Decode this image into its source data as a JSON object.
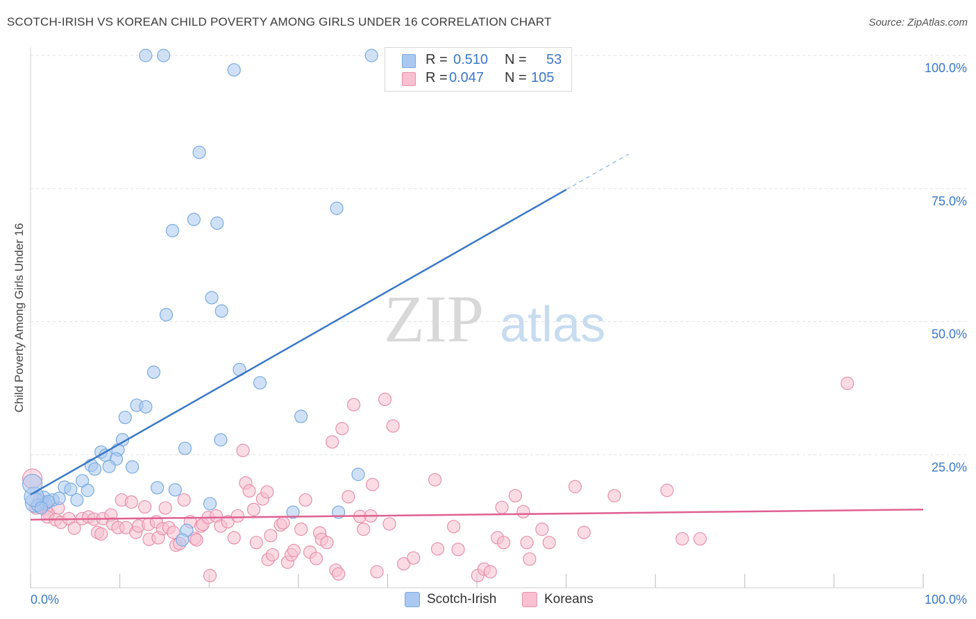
{
  "header": {
    "title": "SCOTCH-IRISH VS KOREAN CHILD POVERTY AMONG GIRLS UNDER 16 CORRELATION CHART",
    "source": "Source: ZipAtlas.com"
  },
  "watermark": {
    "part1": "ZIP",
    "part2": "atlas"
  },
  "stats": {
    "r_label": "R =",
    "n_label": "N =",
    "rows": [
      {
        "r": "0.510",
        "n": "53",
        "color": "#aac8f0",
        "border": "#7aaae0"
      },
      {
        "r": "0.047",
        "n": "105",
        "color": "#f8c0d0",
        "border": "#e890ac"
      }
    ]
  },
  "legend": {
    "items": [
      {
        "label": "Scotch-Irish",
        "color": "#aac8f0",
        "border": "#7aaae0"
      },
      {
        "label": "Koreans",
        "color": "#f8c0d0",
        "border": "#e890ac"
      }
    ]
  },
  "chart_data": {
    "type": "scatter",
    "title": "SCOTCH-IRISH VS KOREAN CHILD POVERTY AMONG GIRLS UNDER 16 CORRELATION CHART",
    "xlabel": "",
    "ylabel": "Child Poverty Among Girls Under 16",
    "xlim": [
      0,
      100
    ],
    "ylim": [
      0,
      100
    ],
    "x_tick_labels": [
      "0.0%",
      "100.0%"
    ],
    "y_ticks": [
      25,
      50,
      75,
      100
    ],
    "y_tick_labels": [
      "25.0%",
      "50.0%",
      "75.0%",
      "100.0%"
    ],
    "grid": true,
    "legend_position": "bottom",
    "series": [
      {
        "name": "Scotch-Irish",
        "color": "#7aaae0",
        "fill": "#aac8f0",
        "line_color": "#3a78c8",
        "trend": {
          "x0": 0,
          "y0": 17.5,
          "x1": 100,
          "y1": 113,
          "solid_until": 60
        },
        "points": [
          [
            12.9,
            100
          ],
          [
            14.9,
            100
          ],
          [
            38.2,
            100
          ],
          [
            22.8,
            97.3
          ],
          [
            18.9,
            81.8
          ],
          [
            34.3,
            71.3
          ],
          [
            15.9,
            67.1
          ],
          [
            18.3,
            69.2
          ],
          [
            20.9,
            68.5
          ],
          [
            20.3,
            54.5
          ],
          [
            21.4,
            52.0
          ],
          [
            15.2,
            51.3
          ],
          [
            13.8,
            40.5
          ],
          [
            23.4,
            41.0
          ],
          [
            25.7,
            38.5
          ],
          [
            11.9,
            34.3
          ],
          [
            12.9,
            34.0
          ],
          [
            10.6,
            32.0
          ],
          [
            30.3,
            32.2
          ],
          [
            10.3,
            27.8
          ],
          [
            21.3,
            27.8
          ],
          [
            9.8,
            25.9
          ],
          [
            17.3,
            26.2
          ],
          [
            7.9,
            25.5
          ],
          [
            8.4,
            24.9
          ],
          [
            11.4,
            22.7
          ],
          [
            9.6,
            24.2
          ],
          [
            8.8,
            22.8
          ],
          [
            6.8,
            23.0
          ],
          [
            7.2,
            22.3
          ],
          [
            5.8,
            20.1
          ],
          [
            36.7,
            21.3
          ],
          [
            3.8,
            18.9
          ],
          [
            4.5,
            18.5
          ],
          [
            6.4,
            18.3
          ],
          [
            14.2,
            18.8
          ],
          [
            16.2,
            18.4
          ],
          [
            1.5,
            17.0
          ],
          [
            2.5,
            16.5
          ],
          [
            3.2,
            16.8
          ],
          [
            5.2,
            16.5
          ],
          [
            0.5,
            16.0
          ],
          [
            1.7,
            15.8
          ],
          [
            2.0,
            16.2
          ],
          [
            0.8,
            15.5
          ],
          [
            0.4,
            17.1
          ],
          [
            0.2,
            19.5
          ],
          [
            20.1,
            15.8
          ],
          [
            29.4,
            14.2
          ],
          [
            34.5,
            14.2
          ],
          [
            17.5,
            10.8
          ],
          [
            17.0,
            9.0
          ],
          [
            1.2,
            15.0
          ]
        ]
      },
      {
        "name": "Koreans",
        "color": "#e890ac",
        "fill": "#f8c0d0",
        "line_color": "#e06090",
        "trend": {
          "x0": 0,
          "y0": 12.8,
          "x1": 100,
          "y1": 14.7
        },
        "points": [
          [
            0.2,
            20.5
          ],
          [
            1.0,
            16.6
          ],
          [
            0.6,
            15.0
          ],
          [
            1.3,
            15.9
          ],
          [
            1.7,
            14.8
          ],
          [
            2.0,
            14.0
          ],
          [
            1.9,
            13.3
          ],
          [
            3.1,
            15.0
          ],
          [
            2.8,
            12.8
          ],
          [
            3.4,
            12.3
          ],
          [
            4.3,
            13.0
          ],
          [
            4.9,
            11.2
          ],
          [
            5.8,
            13.0
          ],
          [
            6.5,
            13.3
          ],
          [
            7.1,
            12.9
          ],
          [
            7.5,
            10.4
          ],
          [
            7.9,
            10.1
          ],
          [
            8.1,
            13.0
          ],
          [
            9.0,
            13.7
          ],
          [
            9.2,
            12.0
          ],
          [
            9.8,
            11.3
          ],
          [
            10.2,
            16.5
          ],
          [
            10.7,
            11.3
          ],
          [
            11.3,
            16.1
          ],
          [
            11.8,
            10.4
          ],
          [
            12.1,
            11.6
          ],
          [
            12.8,
            15.2
          ],
          [
            13.2,
            11.9
          ],
          [
            13.3,
            9.1
          ],
          [
            14.1,
            12.4
          ],
          [
            14.3,
            9.4
          ],
          [
            14.8,
            11.1
          ],
          [
            15.1,
            15.0
          ],
          [
            15.5,
            11.3
          ],
          [
            16.0,
            10.4
          ],
          [
            16.3,
            8.0
          ],
          [
            16.7,
            8.3
          ],
          [
            17.2,
            16.5
          ],
          [
            17.9,
            12.4
          ],
          [
            18.4,
            9.3
          ],
          [
            18.6,
            9.0
          ],
          [
            19.1,
            11.6
          ],
          [
            19.3,
            11.9
          ],
          [
            19.9,
            13.2
          ],
          [
            20.1,
            2.3
          ],
          [
            20.8,
            13.5
          ],
          [
            21.3,
            11.6
          ],
          [
            22.1,
            12.4
          ],
          [
            22.8,
            9.4
          ],
          [
            23.2,
            13.5
          ],
          [
            23.8,
            25.8
          ],
          [
            24.1,
            19.7
          ],
          [
            24.5,
            18.2
          ],
          [
            25.0,
            14.7
          ],
          [
            25.3,
            8.5
          ],
          [
            26.0,
            16.7
          ],
          [
            26.5,
            18.0
          ],
          [
            26.6,
            5.3
          ],
          [
            26.9,
            9.8
          ],
          [
            27.1,
            6.2
          ],
          [
            28.0,
            11.8
          ],
          [
            28.3,
            12.2
          ],
          [
            28.8,
            4.8
          ],
          [
            29.2,
            6.2
          ],
          [
            29.5,
            7.0
          ],
          [
            30.3,
            11.0
          ],
          [
            30.8,
            16.5
          ],
          [
            31.3,
            6.7
          ],
          [
            32.0,
            5.5
          ],
          [
            32.4,
            10.3
          ],
          [
            32.6,
            9.1
          ],
          [
            33.2,
            8.5
          ],
          [
            33.8,
            27.4
          ],
          [
            34.2,
            3.3
          ],
          [
            34.5,
            2.6
          ],
          [
            34.9,
            29.9
          ],
          [
            35.6,
            17.1
          ],
          [
            36.2,
            34.4
          ],
          [
            36.9,
            13.4
          ],
          [
            37.3,
            11.0
          ],
          [
            38.1,
            13.5
          ],
          [
            38.3,
            19.4
          ],
          [
            38.8,
            3.0
          ],
          [
            39.7,
            35.4
          ],
          [
            40.2,
            12.0
          ],
          [
            40.6,
            30.4
          ],
          [
            41.8,
            4.5
          ],
          [
            42.9,
            5.6
          ],
          [
            45.3,
            20.3
          ],
          [
            45.6,
            7.3
          ],
          [
            47.4,
            11.5
          ],
          [
            47.9,
            7.2
          ],
          [
            50.1,
            2.3
          ],
          [
            50.8,
            3.5
          ],
          [
            51.5,
            3.0
          ],
          [
            52.3,
            9.4
          ],
          [
            52.8,
            15.1
          ],
          [
            53.0,
            8.5
          ],
          [
            54.3,
            17.3
          ],
          [
            55.2,
            14.3
          ],
          [
            55.6,
            8.5
          ],
          [
            55.9,
            5.4
          ],
          [
            57.3,
            11.0
          ],
          [
            58.1,
            8.5
          ],
          [
            61.0,
            19.0
          ]
        ],
        "extra_points": [
          [
            62.0,
            10.4
          ],
          [
            65.4,
            17.3
          ],
          [
            71.3,
            18.3
          ],
          [
            73.0,
            9.2
          ],
          [
            75.0,
            9.2
          ],
          [
            91.5,
            38.4
          ]
        ]
      }
    ]
  }
}
